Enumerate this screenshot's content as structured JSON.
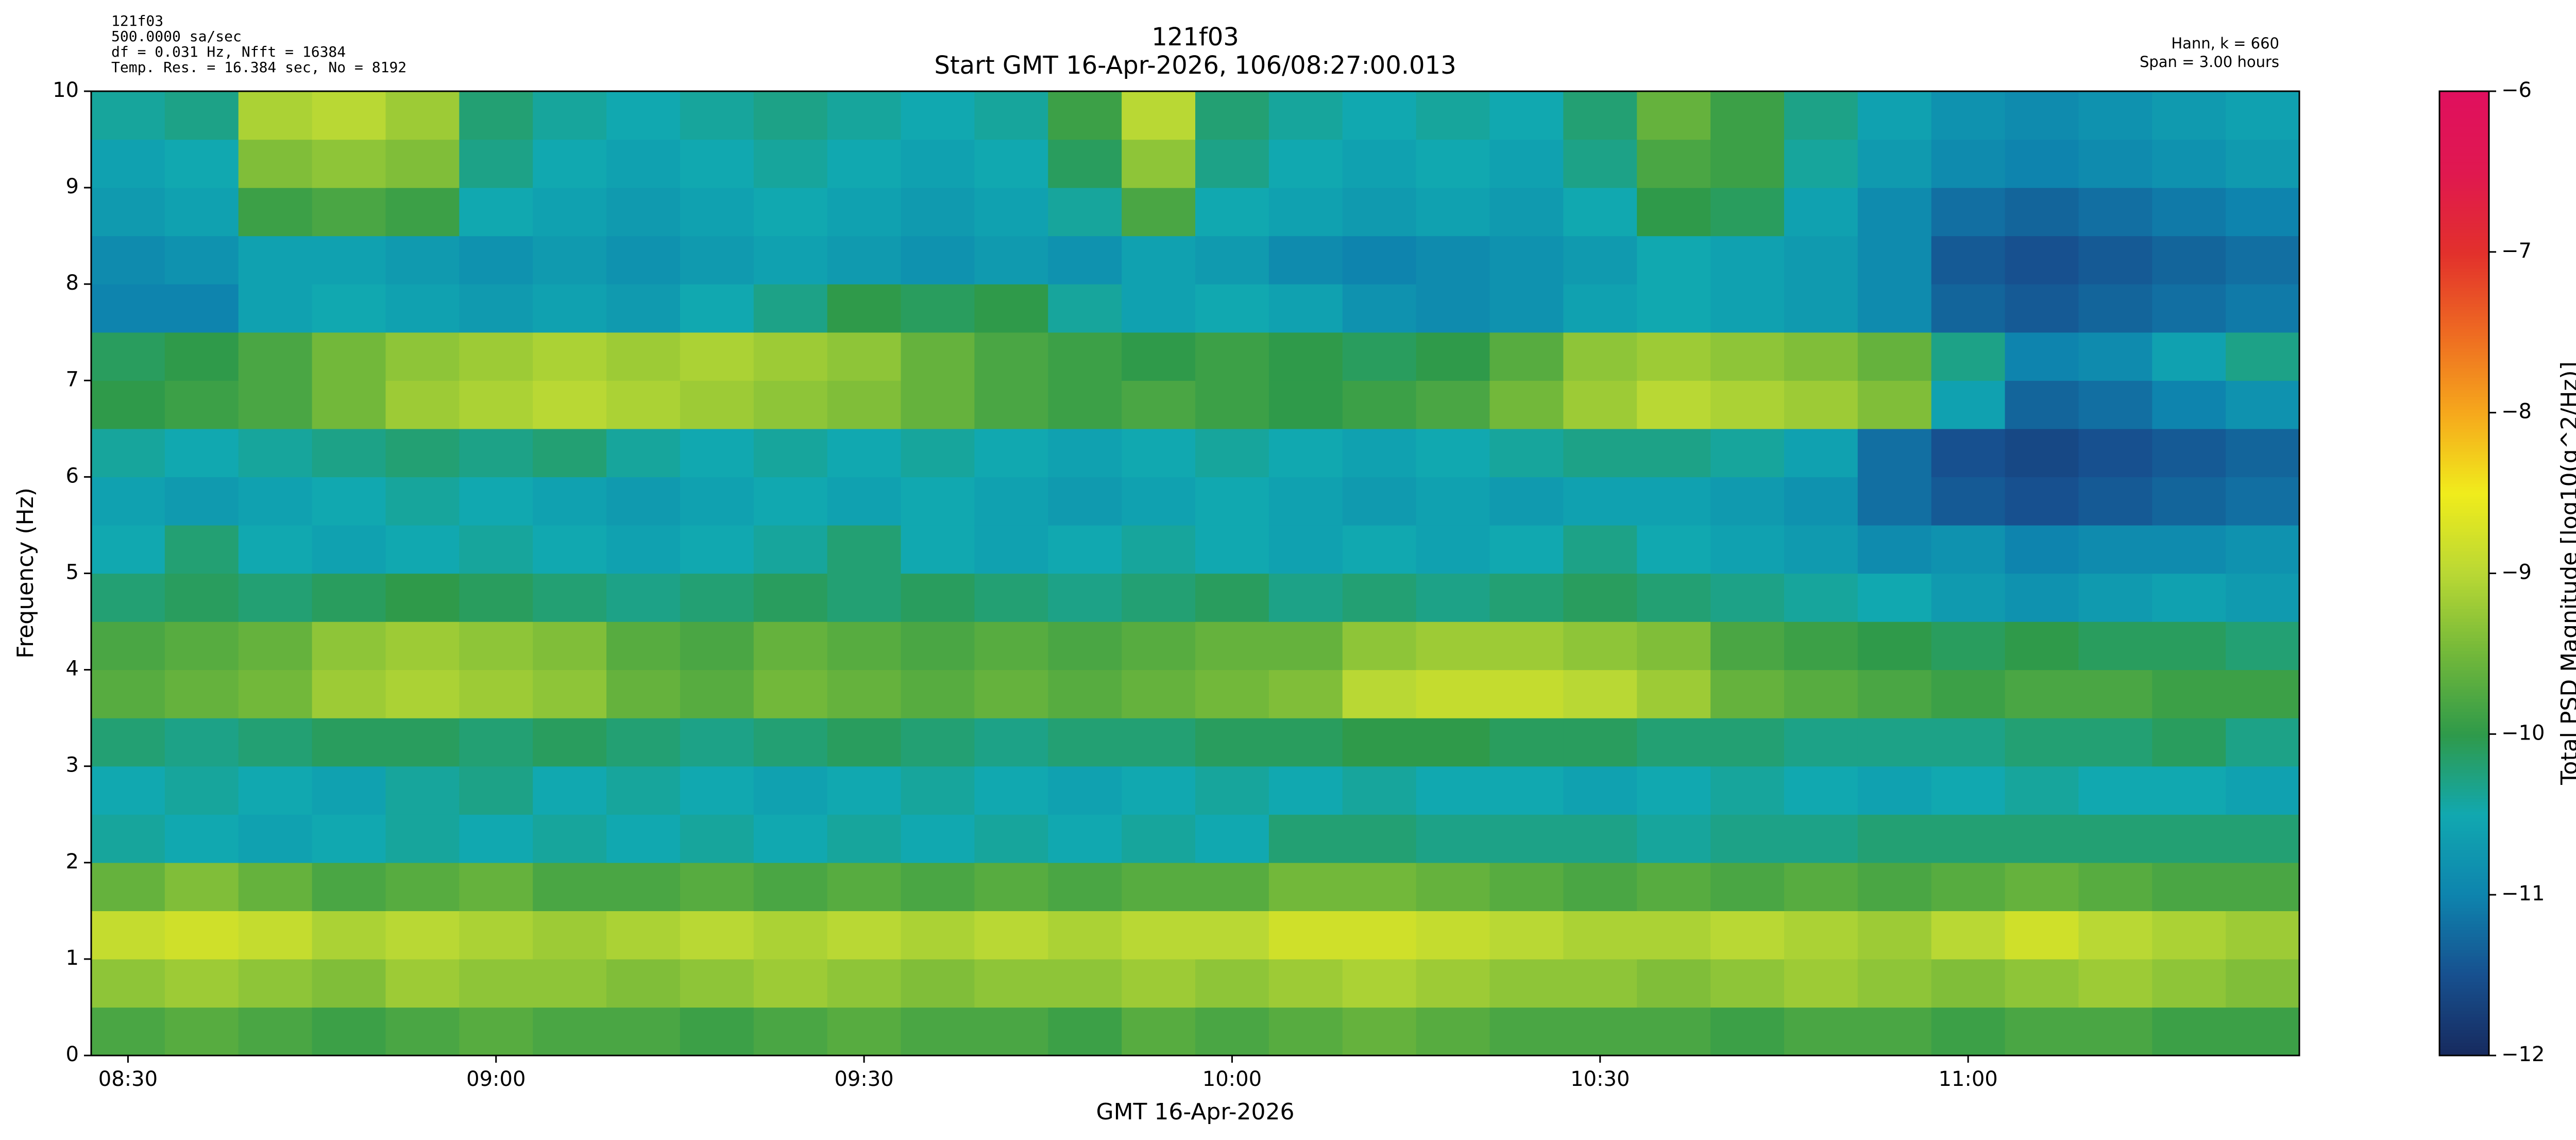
{
  "chart_data": {
    "type": "heatmap",
    "header_left": [
      "121f03",
      "500.0000 sa/sec",
      "df = 0.031 Hz,  Nfft = 16384",
      "Temp. Res. = 16.384 sec, No = 8192"
    ],
    "title": "121f03",
    "subtitle": "Start GMT 16-Apr-2026, 106/08:27:00.013",
    "header_right": [
      "Hann, k = 660",
      "Span = 3.00 hours"
    ],
    "x_label": "GMT 16-Apr-2026",
    "y_label": "Frequency (Hz)",
    "colorbar_label": "Total PSD Magnitude [log10(g^2/Hz)]",
    "xlim": [
      507,
      687
    ],
    "xticks": [
      {
        "value": 510,
        "label": "08:30"
      },
      {
        "value": 540,
        "label": "09:00"
      },
      {
        "value": 570,
        "label": "09:30"
      },
      {
        "value": 600,
        "label": "10:00"
      },
      {
        "value": 630,
        "label": "10:30"
      },
      {
        "value": 660,
        "label": "11:00"
      }
    ],
    "ylim": [
      0,
      10
    ],
    "yticks": [
      0,
      1,
      2,
      3,
      4,
      5,
      6,
      7,
      8,
      9,
      10
    ],
    "x_edges": [
      507,
      513,
      519,
      525,
      531,
      537,
      543,
      549,
      555,
      561,
      567,
      573,
      579,
      585,
      591,
      597,
      603,
      609,
      615,
      621,
      627,
      633,
      639,
      645,
      651,
      657,
      663,
      669,
      675,
      681,
      687
    ],
    "y_edges": [
      0,
      0.5,
      1,
      1.5,
      2,
      2.5,
      3,
      3.5,
      4,
      4.5,
      5,
      5.5,
      6,
      6.5,
      7,
      7.5,
      8,
      8.5,
      9,
      9.5,
      10
    ],
    "z": [
      [
        -9.8,
        -9.7,
        -9.8,
        -9.9,
        -9.8,
        -9.7,
        -9.8,
        -9.8,
        -9.9,
        -9.8,
        -9.7,
        -9.8,
        -9.8,
        -9.9,
        -9.7,
        -9.8,
        -9.7,
        -9.6,
        -9.7,
        -9.8,
        -9.8,
        -9.8,
        -9.9,
        -9.8,
        -9.8,
        -9.9,
        -9.8,
        -9.8,
        -9.9,
        -9.9
      ],
      [
        -9.3,
        -9.2,
        -9.3,
        -9.4,
        -9.2,
        -9.3,
        -9.3,
        -9.4,
        -9.3,
        -9.2,
        -9.3,
        -9.4,
        -9.3,
        -9.3,
        -9.2,
        -9.3,
        -9.2,
        -9.1,
        -9.2,
        -9.3,
        -9.3,
        -9.4,
        -9.3,
        -9.2,
        -9.3,
        -9.4,
        -9.3,
        -9.2,
        -9.3,
        -9.4
      ],
      [
        -8.9,
        -8.8,
        -8.9,
        -9.1,
        -9.0,
        -9.1,
        -9.2,
        -9.1,
        -9.0,
        -9.1,
        -9.0,
        -9.1,
        -9.0,
        -9.1,
        -9.0,
        -9.0,
        -8.8,
        -8.8,
        -8.9,
        -9.0,
        -9.1,
        -9.1,
        -9.0,
        -9.1,
        -9.2,
        -9.0,
        -8.8,
        -9.0,
        -9.1,
        -9.2
      ],
      [
        -9.6,
        -9.4,
        -9.6,
        -9.8,
        -9.7,
        -9.6,
        -9.8,
        -9.8,
        -9.7,
        -9.8,
        -9.7,
        -9.8,
        -9.7,
        -9.8,
        -9.7,
        -9.7,
        -9.5,
        -9.5,
        -9.6,
        -9.7,
        -9.8,
        -9.7,
        -9.8,
        -9.7,
        -9.8,
        -9.7,
        -9.6,
        -9.7,
        -9.8,
        -9.8
      ],
      [
        -10.4,
        -10.5,
        -10.6,
        -10.5,
        -10.4,
        -10.5,
        -10.4,
        -10.5,
        -10.4,
        -10.5,
        -10.4,
        -10.5,
        -10.4,
        -10.5,
        -10.4,
        -10.5,
        -10.2,
        -10.2,
        -10.3,
        -10.3,
        -10.3,
        -10.4,
        -10.3,
        -10.3,
        -10.2,
        -10.2,
        -10.2,
        -10.2,
        -10.2,
        -10.2
      ],
      [
        -10.5,
        -10.4,
        -10.5,
        -10.6,
        -10.4,
        -10.3,
        -10.5,
        -10.4,
        -10.5,
        -10.6,
        -10.5,
        -10.4,
        -10.5,
        -10.6,
        -10.5,
        -10.4,
        -10.5,
        -10.4,
        -10.5,
        -10.5,
        -10.6,
        -10.5,
        -10.4,
        -10.5,
        -10.6,
        -10.5,
        -10.4,
        -10.5,
        -10.5,
        -10.6
      ],
      [
        -10.2,
        -10.3,
        -10.2,
        -10.1,
        -10.1,
        -10.2,
        -10.1,
        -10.2,
        -10.3,
        -10.2,
        -10.1,
        -10.2,
        -10.3,
        -10.2,
        -10.2,
        -10.1,
        -10.1,
        -10.0,
        -10.0,
        -10.1,
        -10.1,
        -10.2,
        -10.2,
        -10.3,
        -10.3,
        -10.3,
        -10.2,
        -10.2,
        -10.1,
        -10.3
      ],
      [
        -9.7,
        -9.6,
        -9.5,
        -9.2,
        -9.1,
        -9.2,
        -9.3,
        -9.6,
        -9.7,
        -9.5,
        -9.6,
        -9.7,
        -9.6,
        -9.7,
        -9.6,
        -9.5,
        -9.4,
        -9.0,
        -8.9,
        -8.9,
        -9.0,
        -9.2,
        -9.6,
        -9.7,
        -9.8,
        -9.9,
        -9.8,
        -9.8,
        -9.9,
        -9.9
      ],
      [
        -9.8,
        -9.7,
        -9.6,
        -9.3,
        -9.2,
        -9.3,
        -9.4,
        -9.7,
        -9.8,
        -9.6,
        -9.7,
        -9.8,
        -9.7,
        -9.8,
        -9.7,
        -9.6,
        -9.6,
        -9.3,
        -9.2,
        -9.2,
        -9.3,
        -9.4,
        -9.8,
        -9.9,
        -10.0,
        -10.1,
        -10.0,
        -10.1,
        -10.1,
        -10.2
      ],
      [
        -10.2,
        -10.1,
        -10.2,
        -10.1,
        -10.0,
        -10.1,
        -10.2,
        -10.3,
        -10.2,
        -10.1,
        -10.2,
        -10.1,
        -10.2,
        -10.3,
        -10.2,
        -10.1,
        -10.3,
        -10.2,
        -10.3,
        -10.2,
        -10.1,
        -10.2,
        -10.3,
        -10.4,
        -10.5,
        -10.7,
        -10.8,
        -10.7,
        -10.6,
        -10.7
      ],
      [
        -10.5,
        -10.2,
        -10.5,
        -10.6,
        -10.5,
        -10.4,
        -10.5,
        -10.6,
        -10.5,
        -10.4,
        -10.2,
        -10.5,
        -10.6,
        -10.5,
        -10.4,
        -10.5,
        -10.6,
        -10.5,
        -10.6,
        -10.5,
        -10.3,
        -10.5,
        -10.6,
        -10.7,
        -10.9,
        -10.8,
        -11.0,
        -10.9,
        -10.9,
        -10.8
      ],
      [
        -10.6,
        -10.7,
        -10.6,
        -10.5,
        -10.4,
        -10.5,
        -10.6,
        -10.7,
        -10.6,
        -10.5,
        -10.6,
        -10.5,
        -10.6,
        -10.7,
        -10.6,
        -10.5,
        -10.6,
        -10.7,
        -10.6,
        -10.7,
        -10.6,
        -10.6,
        -10.7,
        -10.8,
        -11.2,
        -11.4,
        -11.5,
        -11.4,
        -11.3,
        -11.2
      ],
      [
        -10.4,
        -10.5,
        -10.4,
        -10.3,
        -10.2,
        -10.3,
        -10.2,
        -10.4,
        -10.5,
        -10.4,
        -10.5,
        -10.4,
        -10.5,
        -10.6,
        -10.5,
        -10.4,
        -10.5,
        -10.6,
        -10.5,
        -10.4,
        -10.3,
        -10.3,
        -10.4,
        -10.6,
        -11.2,
        -11.5,
        -11.6,
        -11.5,
        -11.4,
        -11.3
      ],
      [
        -10.0,
        -9.9,
        -9.8,
        -9.5,
        -9.2,
        -9.1,
        -9.0,
        -9.1,
        -9.2,
        -9.3,
        -9.4,
        -9.6,
        -9.8,
        -9.9,
        -9.8,
        -9.9,
        -10.0,
        -9.9,
        -9.8,
        -9.5,
        -9.2,
        -9.0,
        -9.1,
        -9.2,
        -9.4,
        -10.6,
        -11.3,
        -11.2,
        -11.0,
        -10.8
      ],
      [
        -10.1,
        -10.0,
        -9.8,
        -9.5,
        -9.3,
        -9.2,
        -9.1,
        -9.2,
        -9.1,
        -9.2,
        -9.3,
        -9.6,
        -9.8,
        -9.9,
        -10.0,
        -9.9,
        -10.0,
        -10.1,
        -10.0,
        -9.7,
        -9.3,
        -9.2,
        -9.3,
        -9.4,
        -9.6,
        -10.3,
        -11.0,
        -10.9,
        -10.6,
        -10.3
      ],
      [
        -11.0,
        -11.0,
        -10.6,
        -10.5,
        -10.6,
        -10.7,
        -10.6,
        -10.7,
        -10.5,
        -10.3,
        -10.0,
        -10.1,
        -10.0,
        -10.4,
        -10.6,
        -10.5,
        -10.6,
        -10.8,
        -10.9,
        -10.8,
        -10.6,
        -10.5,
        -10.6,
        -10.7,
        -10.9,
        -11.3,
        -11.4,
        -11.3,
        -11.2,
        -11.1
      ],
      [
        -10.9,
        -10.8,
        -10.6,
        -10.6,
        -10.7,
        -10.8,
        -10.7,
        -10.8,
        -10.7,
        -10.6,
        -10.7,
        -10.8,
        -10.7,
        -10.8,
        -10.6,
        -10.7,
        -10.9,
        -11.0,
        -10.9,
        -10.8,
        -10.7,
        -10.5,
        -10.6,
        -10.7,
        -10.9,
        -11.4,
        -11.5,
        -11.4,
        -11.3,
        -11.2
      ],
      [
        -10.7,
        -10.6,
        -9.9,
        -9.8,
        -9.9,
        -10.5,
        -10.6,
        -10.7,
        -10.6,
        -10.5,
        -10.6,
        -10.7,
        -10.6,
        -10.4,
        -9.8,
        -10.5,
        -10.6,
        -10.7,
        -10.6,
        -10.7,
        -10.5,
        -10.0,
        -10.1,
        -10.6,
        -10.9,
        -11.2,
        -11.3,
        -11.2,
        -11.1,
        -11.0
      ],
      [
        -10.6,
        -10.5,
        -9.4,
        -9.3,
        -9.4,
        -10.3,
        -10.5,
        -10.6,
        -10.5,
        -10.4,
        -10.5,
        -10.6,
        -10.5,
        -10.1,
        -9.3,
        -10.3,
        -10.5,
        -10.6,
        -10.5,
        -10.6,
        -10.3,
        -9.8,
        -9.9,
        -10.4,
        -10.7,
        -10.9,
        -11.0,
        -10.9,
        -10.8,
        -10.7
      ],
      [
        -10.4,
        -10.3,
        -9.1,
        -9.0,
        -9.2,
        -10.2,
        -10.4,
        -10.5,
        -10.4,
        -10.3,
        -10.4,
        -10.5,
        -10.4,
        -9.9,
        -9.0,
        -10.2,
        -10.4,
        -10.5,
        -10.4,
        -10.5,
        -10.2,
        -9.6,
        -9.9,
        -10.3,
        -10.6,
        -10.8,
        -10.9,
        -10.8,
        -10.7,
        -10.6
      ]
    ],
    "zlim": [
      -12,
      -6
    ],
    "zticks": [
      {
        "value": -12,
        "label": "−12"
      },
      {
        "value": -11,
        "label": "−11"
      },
      {
        "value": -10,
        "label": "−10"
      },
      {
        "value": -9,
        "label": "−9"
      },
      {
        "value": -8,
        "label": "−8"
      },
      {
        "value": -7,
        "label": "−7"
      },
      {
        "value": -6,
        "label": "−6"
      }
    ],
    "colormap": [
      "#172a5e",
      "#17508f",
      "#0e84ae",
      "#11a8b0",
      "#2f9a4a",
      "#72b83a",
      "#b9d834",
      "#f0ec1c",
      "#f6a81c",
      "#ee6a22",
      "#e2302c",
      "#e01850",
      "#e0105e"
    ],
    "title_color": "#000080"
  }
}
